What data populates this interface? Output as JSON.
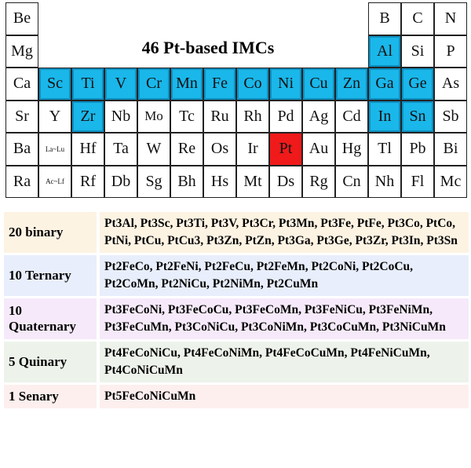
{
  "title": "46 Pt-based IMCs",
  "colors": {
    "highlight": "#1ab7ea",
    "platinum": "#f01a1a"
  },
  "periodic_table": {
    "rows": [
      [
        "Be",
        "",
        "",
        "",
        "",
        "",
        "",
        "",
        "",
        "",
        "",
        "B",
        "C",
        "N"
      ],
      [
        "Mg",
        "",
        "",
        "",
        "",
        "",
        "",
        "",
        "",
        "",
        "",
        "Al",
        "Si",
        "P"
      ],
      [
        "Ca",
        "Sc",
        "Ti",
        "V",
        "Cr",
        "Mn",
        "Fe",
        "Co",
        "Ni",
        "Cu",
        "Zn",
        "Ga",
        "Ge",
        "As"
      ],
      [
        "Sr",
        "Y",
        "Zr",
        "Nb",
        "Mo",
        "Tc",
        "Ru",
        "Rh",
        "Pd",
        "Ag",
        "Cd",
        "In",
        "Sn",
        "Sb"
      ],
      [
        "Ba",
        "La~Lu",
        "Hf",
        "Ta",
        "W",
        "Re",
        "Os",
        "Ir",
        "Pt",
        "Au",
        "Hg",
        "Tl",
        "Pb",
        "Bi"
      ],
      [
        "Ra",
        "Ac~Lf",
        "Rf",
        "Db",
        "Sg",
        "Bh",
        "Hs",
        "Mt",
        "Ds",
        "Rg",
        "Cn",
        "Nh",
        "Fl",
        "Mc"
      ]
    ],
    "highlighted": [
      "Al",
      "Sc",
      "Ti",
      "V",
      "Cr",
      "Mn",
      "Fe",
      "Co",
      "Ni",
      "Cu",
      "Zn",
      "Ga",
      "Ge",
      "Zr",
      "In",
      "Sn"
    ],
    "base": "Pt"
  },
  "categories": [
    {
      "label": "20 binary",
      "bg": "#fdf3e3",
      "items": [
        "Pt3Al",
        "Pt3Sc",
        "Pt3Ti",
        "Pt3V",
        "Pt3Cr",
        "Pt3Mn",
        "Pt3Fe",
        "PtFe",
        "Pt3Co",
        "PtCo",
        "PtNi",
        "PtCu",
        "PtCu3",
        "Pt3Zn",
        "PtZn",
        "Pt3Ga",
        "Pt3Ge",
        "Pt3Zr",
        "Pt3In",
        "Pt3Sn"
      ]
    },
    {
      "label": "10 Ternary",
      "bg": "#e8eefb",
      "items": [
        "Pt2FeCo",
        "Pt2FeNi",
        "Pt2FeCu",
        "Pt2FeMn",
        "Pt2CoNi",
        "Pt2CoCu",
        "Pt2CoMn",
        "Pt2NiCu",
        "Pt2NiMn",
        "Pt2CuMn"
      ]
    },
    {
      "label": "10 Quaternary",
      "bg": "#f6eafa",
      "items": [
        "Pt3FeCoNi",
        "Pt3FeCoCu",
        "Pt3FeCoMn",
        "Pt3FeNiCu",
        "Pt3FeNiMn",
        "Pt3FeCuMn",
        "Pt3CoNiCu",
        "Pt3CoNiMn",
        "Pt3CoCuMn",
        "Pt3NiCuMn"
      ]
    },
    {
      "label": "5 Quinary",
      "bg": "#edf3eb",
      "items": [
        "Pt4FeCoNiCu",
        "Pt4FeCoNiMn",
        "Pt4FeCoCuMn",
        "Pt4FeNiCuMn",
        "Pt4CoNiCuMn"
      ]
    },
    {
      "label": "1 Senary",
      "bg": "#fcefee",
      "items": [
        "Pt5FeCoNiCuMn"
      ]
    }
  ]
}
